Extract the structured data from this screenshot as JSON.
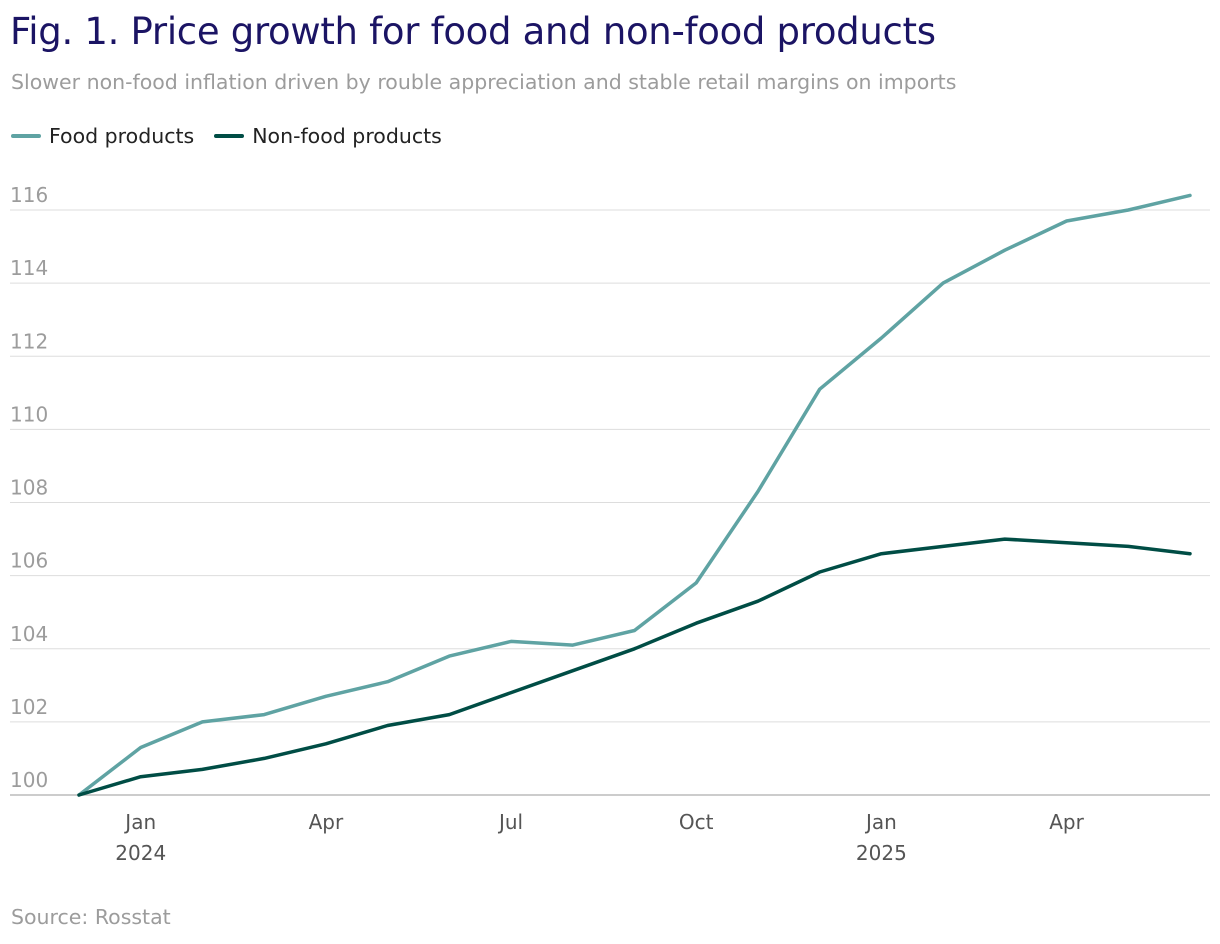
{
  "chart_data": {
    "type": "line",
    "title": "Fig. 1. Price growth for food and non-food products",
    "subtitle": "Slower non-food inflation driven by rouble appreciation and stable retail margins on imports",
    "source": "Source: Rosstat",
    "xlabel": "",
    "ylabel": "",
    "ylim": [
      100,
      116
    ],
    "yticks": [
      100,
      102,
      104,
      106,
      108,
      110,
      112,
      114,
      116
    ],
    "x": [
      "Dec 2023",
      "Jan 2024",
      "Feb 2024",
      "Mar 2024",
      "Apr 2024",
      "May 2024",
      "Jun 2024",
      "Jul 2024",
      "Aug 2024",
      "Sep 2024",
      "Oct 2024",
      "Nov 2024",
      "Dec 2024",
      "Jan 2025",
      "Feb 2025",
      "Mar 2025",
      "Apr 2025",
      "May 2025",
      "Jun 2025"
    ],
    "xticks": [
      {
        "index": 1,
        "label": "Jan",
        "year": "2024"
      },
      {
        "index": 4,
        "label": "Apr",
        "year": ""
      },
      {
        "index": 7,
        "label": "Jul",
        "year": ""
      },
      {
        "index": 10,
        "label": "Oct",
        "year": ""
      },
      {
        "index": 13,
        "label": "Jan",
        "year": "2025"
      },
      {
        "index": 16,
        "label": "Apr",
        "year": ""
      }
    ],
    "grid": true,
    "legend_position": "top-left",
    "series": [
      {
        "name": "Food products",
        "color": "#5fa3a3",
        "values": [
          100.0,
          101.3,
          102.0,
          102.2,
          102.7,
          103.1,
          103.8,
          104.2,
          104.1,
          104.5,
          105.8,
          108.3,
          111.1,
          112.5,
          114.0,
          114.9,
          115.7,
          116.0,
          116.4
        ]
      },
      {
        "name": "Non-food products",
        "color": "#004d45",
        "values": [
          100.0,
          100.5,
          100.7,
          101.0,
          101.4,
          101.9,
          102.2,
          102.8,
          103.4,
          104.0,
          104.7,
          105.3,
          106.1,
          106.6,
          106.8,
          107.0,
          106.9,
          106.8,
          106.6
        ]
      }
    ]
  },
  "colors": {
    "title": "#1b1464",
    "muted": "#9c9c9c",
    "grid": "#dddddd",
    "axis": "#bbbbbb"
  }
}
